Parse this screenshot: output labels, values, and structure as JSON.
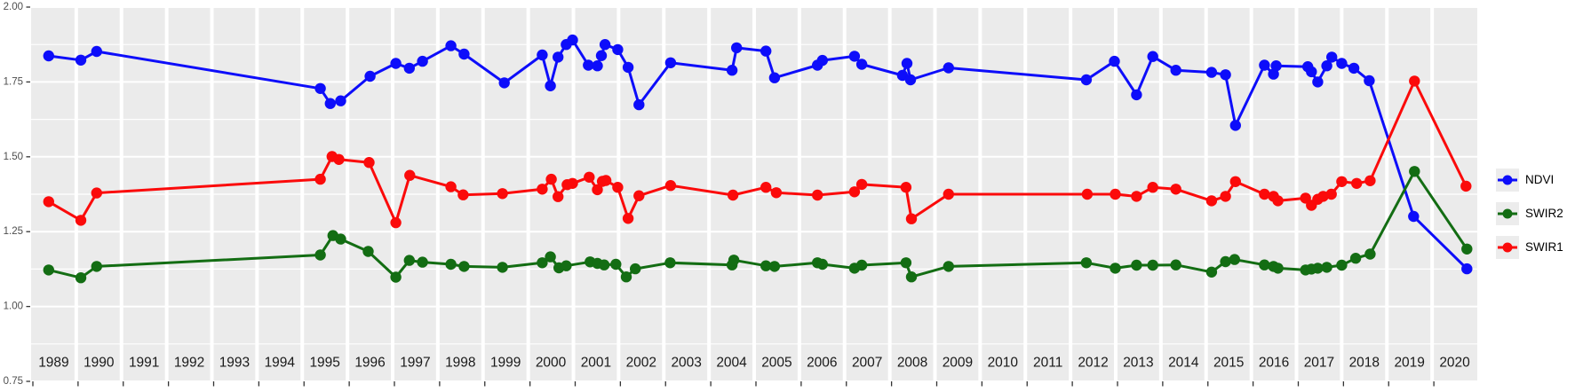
{
  "figure": {
    "background": "#ffffff",
    "panel_background": "#ebebeb",
    "gridline_color": "#ffffff",
    "axis_text_color": "#4d4d4d",
    "tick_mark_color": "#333333",
    "year_label_color": "#1a1a1a"
  },
  "y_axis": {
    "tick_labels": [
      "2.00",
      "1.75",
      "1.50",
      "1.25",
      "1.00",
      "0.75"
    ],
    "tick_values": [
      2.0,
      1.75,
      1.5,
      1.25,
      1.0,
      0.75
    ]
  },
  "x_axis": {
    "years": [
      "1989",
      "1990",
      "1991",
      "1992",
      "1993",
      "1994",
      "1995",
      "1996",
      "1997",
      "1998",
      "1999",
      "2000",
      "2001",
      "2002",
      "2003",
      "2004",
      "2005",
      "2006",
      "2007",
      "2008",
      "2009",
      "2010",
      "2011",
      "2012",
      "2013",
      "2014",
      "2015",
      "2016",
      "2017",
      "2018",
      "2019",
      "2020"
    ]
  },
  "legend": {
    "entries": [
      {
        "label": "NDVI",
        "color": "#0d0dfa"
      },
      {
        "label": "SWIR2",
        "color": "#136d13"
      },
      {
        "label": "SWIR1",
        "color": "#fb0a0a"
      }
    ]
  },
  "chart_data": {
    "type": "line",
    "title": "",
    "xlabel": "",
    "ylabel": "",
    "ylim": [
      0.75,
      2.0
    ],
    "xlim": [
      1989,
      2021
    ],
    "grid": true,
    "y_major_step": 0.25,
    "y_minor_step": 0.125,
    "legend_position": "right",
    "x_tick_labels": [
      "1989",
      "1990",
      "1991",
      "1992",
      "1993",
      "1994",
      "1995",
      "1996",
      "1997",
      "1998",
      "1999",
      "2000",
      "2001",
      "2002",
      "2003",
      "2004",
      "2005",
      "2006",
      "2007",
      "2008",
      "2009",
      "2010",
      "2011",
      "2012",
      "2013",
      "2014",
      "2015",
      "2016",
      "2017",
      "2018",
      "2019",
      "2020"
    ],
    "y_tick_labels": [
      "0.75",
      "1.00",
      "1.25",
      "1.50",
      "1.75",
      "2.00"
    ],
    "series": [
      {
        "name": "NDVI",
        "color": "#0d0dfa",
        "points": [
          [
            1989.39,
            1.837
          ],
          [
            1990.1,
            1.823
          ],
          [
            1990.45,
            1.852
          ],
          [
            1995.4,
            1.728
          ],
          [
            1995.62,
            1.678
          ],
          [
            1995.85,
            1.687
          ],
          [
            1996.5,
            1.769
          ],
          [
            1997.07,
            1.812
          ],
          [
            1997.37,
            1.796
          ],
          [
            1997.66,
            1.819
          ],
          [
            1998.29,
            1.871
          ],
          [
            1998.58,
            1.843
          ],
          [
            1999.47,
            1.747
          ],
          [
            2000.31,
            1.84
          ],
          [
            2000.49,
            1.737
          ],
          [
            2000.66,
            1.833
          ],
          [
            2000.84,
            1.875
          ],
          [
            2000.98,
            1.89
          ],
          [
            2001.33,
            1.806
          ],
          [
            2001.53,
            1.804
          ],
          [
            2001.62,
            1.838
          ],
          [
            2001.7,
            1.875
          ],
          [
            2001.98,
            1.858
          ],
          [
            2002.21,
            1.799
          ],
          [
            2002.45,
            1.674
          ],
          [
            2003.15,
            1.814
          ],
          [
            2004.51,
            1.789
          ],
          [
            2004.61,
            1.864
          ],
          [
            2005.26,
            1.853
          ],
          [
            2005.45,
            1.764
          ],
          [
            2006.4,
            1.806
          ],
          [
            2006.51,
            1.822
          ],
          [
            2007.22,
            1.836
          ],
          [
            2007.38,
            1.809
          ],
          [
            2008.28,
            1.772
          ],
          [
            2008.38,
            1.812
          ],
          [
            2008.46,
            1.757
          ],
          [
            2009.3,
            1.797
          ],
          [
            2012.35,
            1.757
          ],
          [
            2012.97,
            1.819
          ],
          [
            2013.46,
            1.707
          ],
          [
            2013.82,
            1.835
          ],
          [
            2014.33,
            1.789
          ],
          [
            2015.12,
            1.782
          ],
          [
            2015.43,
            1.774
          ],
          [
            2015.65,
            1.605
          ],
          [
            2016.29,
            1.806
          ],
          [
            2016.49,
            1.776
          ],
          [
            2016.55,
            1.804
          ],
          [
            2017.25,
            1.801
          ],
          [
            2017.33,
            1.784
          ],
          [
            2017.47,
            1.75
          ],
          [
            2017.67,
            1.804
          ],
          [
            2017.78,
            1.833
          ],
          [
            2018.0,
            1.812
          ],
          [
            2018.27,
            1.796
          ],
          [
            2018.61,
            1.754
          ],
          [
            2019.59,
            1.301
          ],
          [
            2020.77,
            1.126
          ]
        ]
      },
      {
        "name": "SWIR2",
        "color": "#136d13",
        "points": [
          [
            1989.39,
            1.122
          ],
          [
            1990.1,
            1.096
          ],
          [
            1990.45,
            1.134
          ],
          [
            1995.4,
            1.172
          ],
          [
            1995.68,
            1.237
          ],
          [
            1995.85,
            1.225
          ],
          [
            1996.46,
            1.184
          ],
          [
            1997.07,
            1.098
          ],
          [
            1997.37,
            1.154
          ],
          [
            1997.66,
            1.148
          ],
          [
            1998.29,
            1.141
          ],
          [
            1998.58,
            1.134
          ],
          [
            1999.43,
            1.131
          ],
          [
            2000.31,
            1.146
          ],
          [
            2000.49,
            1.166
          ],
          [
            2000.68,
            1.129
          ],
          [
            2000.84,
            1.136
          ],
          [
            2001.37,
            1.149
          ],
          [
            2001.53,
            1.144
          ],
          [
            2001.68,
            1.139
          ],
          [
            2001.94,
            1.141
          ],
          [
            2002.17,
            1.099
          ],
          [
            2002.37,
            1.126
          ],
          [
            2003.14,
            1.146
          ],
          [
            2004.51,
            1.139
          ],
          [
            2004.55,
            1.155
          ],
          [
            2005.26,
            1.136
          ],
          [
            2005.45,
            1.134
          ],
          [
            2006.4,
            1.146
          ],
          [
            2006.51,
            1.141
          ],
          [
            2007.22,
            1.128
          ],
          [
            2007.38,
            1.138
          ],
          [
            2008.36,
            1.146
          ],
          [
            2008.48,
            1.099
          ],
          [
            2009.3,
            1.134
          ],
          [
            2012.35,
            1.146
          ],
          [
            2012.99,
            1.128
          ],
          [
            2013.46,
            1.138
          ],
          [
            2013.82,
            1.138
          ],
          [
            2014.33,
            1.139
          ],
          [
            2015.12,
            1.115
          ],
          [
            2015.43,
            1.15
          ],
          [
            2015.63,
            1.157
          ],
          [
            2016.29,
            1.139
          ],
          [
            2016.49,
            1.134
          ],
          [
            2016.59,
            1.128
          ],
          [
            2017.2,
            1.122
          ],
          [
            2017.33,
            1.125
          ],
          [
            2017.47,
            1.128
          ],
          [
            2017.67,
            1.131
          ],
          [
            2018.0,
            1.138
          ],
          [
            2018.31,
            1.161
          ],
          [
            2018.63,
            1.175
          ],
          [
            2019.61,
            1.451
          ],
          [
            2020.77,
            1.192
          ]
        ]
      },
      {
        "name": "SWIR1",
        "color": "#fb0a0a",
        "points": [
          [
            1989.39,
            1.35
          ],
          [
            1990.1,
            1.288
          ],
          [
            1990.45,
            1.379
          ],
          [
            1995.4,
            1.425
          ],
          [
            1995.66,
            1.501
          ],
          [
            1995.81,
            1.491
          ],
          [
            1996.48,
            1.481
          ],
          [
            1997.07,
            1.28
          ],
          [
            1997.38,
            1.438
          ],
          [
            1998.29,
            1.4
          ],
          [
            1998.56,
            1.373
          ],
          [
            1999.43,
            1.377
          ],
          [
            2000.31,
            1.392
          ],
          [
            2000.51,
            1.425
          ],
          [
            2000.66,
            1.367
          ],
          [
            2000.86,
            1.407
          ],
          [
            2000.98,
            1.411
          ],
          [
            2001.35,
            1.432
          ],
          [
            2001.53,
            1.39
          ],
          [
            2001.64,
            1.418
          ],
          [
            2001.72,
            1.421
          ],
          [
            2001.98,
            1.398
          ],
          [
            2002.21,
            1.294
          ],
          [
            2002.45,
            1.37
          ],
          [
            2003.15,
            1.404
          ],
          [
            2004.53,
            1.372
          ],
          [
            2005.26,
            1.398
          ],
          [
            2005.49,
            1.38
          ],
          [
            2006.4,
            1.372
          ],
          [
            2007.22,
            1.383
          ],
          [
            2007.38,
            1.408
          ],
          [
            2008.36,
            1.398
          ],
          [
            2008.48,
            1.293
          ],
          [
            2009.3,
            1.375
          ],
          [
            2012.37,
            1.375
          ],
          [
            2012.99,
            1.375
          ],
          [
            2013.46,
            1.368
          ],
          [
            2013.82,
            1.398
          ],
          [
            2014.33,
            1.392
          ],
          [
            2015.12,
            1.353
          ],
          [
            2015.43,
            1.368
          ],
          [
            2015.65,
            1.417
          ],
          [
            2016.29,
            1.375
          ],
          [
            2016.49,
            1.368
          ],
          [
            2016.59,
            1.353
          ],
          [
            2017.2,
            1.362
          ],
          [
            2017.33,
            1.338
          ],
          [
            2017.47,
            1.358
          ],
          [
            2017.59,
            1.368
          ],
          [
            2017.77,
            1.375
          ],
          [
            2018.0,
            1.417
          ],
          [
            2018.33,
            1.411
          ],
          [
            2018.63,
            1.42
          ],
          [
            2019.61,
            1.753
          ],
          [
            2020.75,
            1.402
          ]
        ]
      }
    ]
  }
}
